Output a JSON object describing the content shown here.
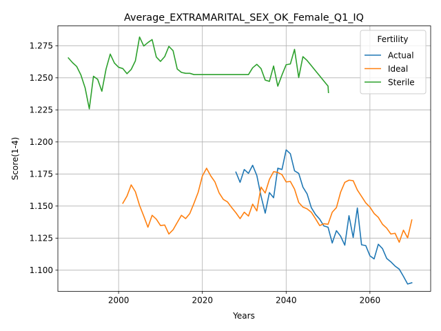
{
  "chart_data": {
    "type": "line",
    "title": "Average_EXTRAMARITAL_SEX_OK_Female_Q1_IQ",
    "xlabel": "Years",
    "ylabel": "Score(1-4)",
    "xlim": [
      2085.5,
      2074.5
    ],
    "ylim": [
      1.0835,
      1.2905
    ],
    "grid": true,
    "legend": {
      "title": "Fertility",
      "placement": "top-right"
    },
    "x_ticks": [
      2000,
      2020,
      2040,
      2060
    ],
    "y_ticks": [
      1.1,
      1.125,
      1.15,
      1.175,
      1.2,
      1.225,
      1.25,
      1.275
    ],
    "series": [
      {
        "name": "Actual",
        "color": "#1f77b4",
        "points": [
          [
            2028,
            1.1765
          ],
          [
            2029,
            1.1685
          ],
          [
            2030,
            1.1785
          ],
          [
            2031,
            1.1755
          ],
          [
            2032,
            1.1818
          ],
          [
            2033,
            1.1738
          ],
          [
            2034,
            1.1578
          ],
          [
            2035,
            1.1445
          ],
          [
            2036,
            1.1605
          ],
          [
            2037,
            1.1565
          ],
          [
            2038,
            1.1795
          ],
          [
            2039,
            1.1785
          ],
          [
            2040,
            1.1938
          ],
          [
            2041,
            1.1908
          ],
          [
            2042,
            1.1775
          ],
          [
            2043,
            1.1755
          ],
          [
            2044,
            1.1648
          ],
          [
            2045,
            1.1595
          ],
          [
            2046,
            1.1488
          ],
          [
            2047,
            1.1435
          ],
          [
            2048,
            1.1398
          ],
          [
            2049,
            1.1345
          ],
          [
            2050,
            1.1335
          ],
          [
            2051,
            1.1212
          ],
          [
            2052,
            1.1308
          ],
          [
            2053,
            1.1265
          ],
          [
            2054,
            1.1195
          ],
          [
            2055,
            1.1425
          ],
          [
            2056,
            1.1255
          ],
          [
            2057,
            1.1485
          ],
          [
            2058,
            1.1198
          ],
          [
            2059,
            1.1192
          ],
          [
            2060,
            1.1112
          ],
          [
            2061,
            1.1088
          ],
          [
            2062,
            1.1202
          ],
          [
            2063,
            1.1168
          ],
          [
            2064,
            1.1092
          ],
          [
            2065,
            1.1065
          ],
          [
            2066,
            1.1032
          ],
          [
            2067,
            1.1008
          ],
          [
            2068,
            1.0952
          ],
          [
            2069,
            1.0892
          ],
          [
            2070,
            1.0902
          ]
        ]
      },
      {
        "name": "Ideal",
        "color": "#ff7f0e",
        "points": [
          [
            2001,
            1.1522
          ],
          [
            2002,
            1.1578
          ],
          [
            2003,
            1.1665
          ],
          [
            2004,
            1.1612
          ],
          [
            2005,
            1.1505
          ],
          [
            2006,
            1.1422
          ],
          [
            2007,
            1.1335
          ],
          [
            2008,
            1.1428
          ],
          [
            2009,
            1.1398
          ],
          [
            2010,
            1.1348
          ],
          [
            2011,
            1.1352
          ],
          [
            2012,
            1.1282
          ],
          [
            2013,
            1.1315
          ],
          [
            2014,
            1.1372
          ],
          [
            2015,
            1.1428
          ],
          [
            2016,
            1.1402
          ],
          [
            2017,
            1.1442
          ],
          [
            2018,
            1.1522
          ],
          [
            2019,
            1.1608
          ],
          [
            2020,
            1.1735
          ],
          [
            2021,
            1.1795
          ],
          [
            2022,
            1.1735
          ],
          [
            2023,
            1.1688
          ],
          [
            2024,
            1.1602
          ],
          [
            2025,
            1.1552
          ],
          [
            2026,
            1.1532
          ],
          [
            2027,
            1.1488
          ],
          [
            2028,
            1.1448
          ],
          [
            2029,
            1.1402
          ],
          [
            2030,
            1.1452
          ],
          [
            2031,
            1.1422
          ],
          [
            2032,
            1.1515
          ],
          [
            2033,
            1.1462
          ],
          [
            2034,
            1.1648
          ],
          [
            2035,
            1.1602
          ],
          [
            2036,
            1.1708
          ],
          [
            2037,
            1.1768
          ],
          [
            2038,
            1.1762
          ],
          [
            2039,
            1.1745
          ],
          [
            2040,
            1.1688
          ],
          [
            2041,
            1.1692
          ],
          [
            2042,
            1.1632
          ],
          [
            2043,
            1.1528
          ],
          [
            2044,
            1.1492
          ],
          [
            2045,
            1.1478
          ],
          [
            2046,
            1.1452
          ],
          [
            2047,
            1.1402
          ],
          [
            2048,
            1.1348
          ],
          [
            2049,
            1.1362
          ],
          [
            2050,
            1.1358
          ],
          [
            2051,
            1.1452
          ],
          [
            2052,
            1.1488
          ],
          [
            2053,
            1.1608
          ],
          [
            2054,
            1.1685
          ],
          [
            2055,
            1.1702
          ],
          [
            2056,
            1.1698
          ],
          [
            2057,
            1.1625
          ],
          [
            2058,
            1.1575
          ],
          [
            2059,
            1.1525
          ],
          [
            2060,
            1.1492
          ],
          [
            2061,
            1.1442
          ],
          [
            2062,
            1.1412
          ],
          [
            2063,
            1.1358
          ],
          [
            2064,
            1.1328
          ],
          [
            2065,
            1.1282
          ],
          [
            2066,
            1.1288
          ],
          [
            2067,
            1.1218
          ],
          [
            2068,
            1.1312
          ],
          [
            2069,
            1.1252
          ],
          [
            2070,
            1.1392
          ]
        ]
      },
      {
        "name": "Sterile",
        "color": "#2ca02c",
        "points": [
          [
            1988,
            1.2655
          ],
          [
            1989,
            1.2618
          ],
          [
            1990,
            1.2588
          ],
          [
            1991,
            1.2522
          ],
          [
            1992,
            1.2422
          ],
          [
            1993,
            1.2258
          ],
          [
            1994,
            1.2512
          ],
          [
            1995,
            1.2488
          ],
          [
            1996,
            1.2395
          ],
          [
            1997,
            1.2568
          ],
          [
            1998,
            1.2685
          ],
          [
            1999,
            1.2615
          ],
          [
            2000,
            1.2582
          ],
          [
            2001,
            1.2572
          ],
          [
            2002,
            1.2532
          ],
          [
            2003,
            1.2565
          ],
          [
            2004,
            1.2632
          ],
          [
            2005,
            1.2818
          ],
          [
            2006,
            1.2748
          ],
          [
            2007,
            1.2775
          ],
          [
            2008,
            1.2798
          ],
          [
            2009,
            1.2662
          ],
          [
            2010,
            1.2628
          ],
          [
            2011,
            1.2665
          ],
          [
            2012,
            1.2745
          ],
          [
            2013,
            1.2712
          ],
          [
            2014,
            1.2568
          ],
          [
            2015,
            1.2542
          ],
          [
            2016,
            1.2535
          ],
          [
            2017,
            1.2535
          ],
          [
            2018,
            1.2525
          ],
          [
            2019,
            1.2525
          ],
          [
            2020,
            1.2525
          ],
          [
            2021,
            1.2525
          ],
          [
            2022,
            1.2525
          ],
          [
            2023,
            1.2525
          ],
          [
            2024,
            1.2525
          ],
          [
            2025,
            1.2525
          ],
          [
            2026,
            1.2525
          ],
          [
            2027,
            1.2525
          ],
          [
            2028,
            1.2525
          ],
          [
            2029,
            1.2525
          ],
          [
            2030,
            1.2525
          ],
          [
            2031,
            1.2525
          ],
          [
            2032,
            1.2578
          ],
          [
            2033,
            1.2605
          ],
          [
            2034,
            1.2572
          ],
          [
            2035,
            1.2482
          ],
          [
            2036,
            1.2472
          ],
          [
            2037,
            1.2592
          ],
          [
            2038,
            1.2435
          ],
          [
            2039,
            1.2522
          ],
          [
            2040,
            1.2602
          ],
          [
            2041,
            1.2608
          ],
          [
            2042,
            1.2722
          ],
          [
            2043,
            1.2502
          ],
          [
            2044,
            1.2665
          ],
          [
            2045,
            1.2635
          ],
          [
            2046,
            1.2595
          ],
          [
            2047,
            1.2555
          ],
          [
            2048,
            1.2515
          ],
          [
            2049,
            1.2475
          ],
          [
            2050,
            1.2435
          ],
          [
            2050.1,
            1.2385
          ]
        ]
      }
    ]
  }
}
